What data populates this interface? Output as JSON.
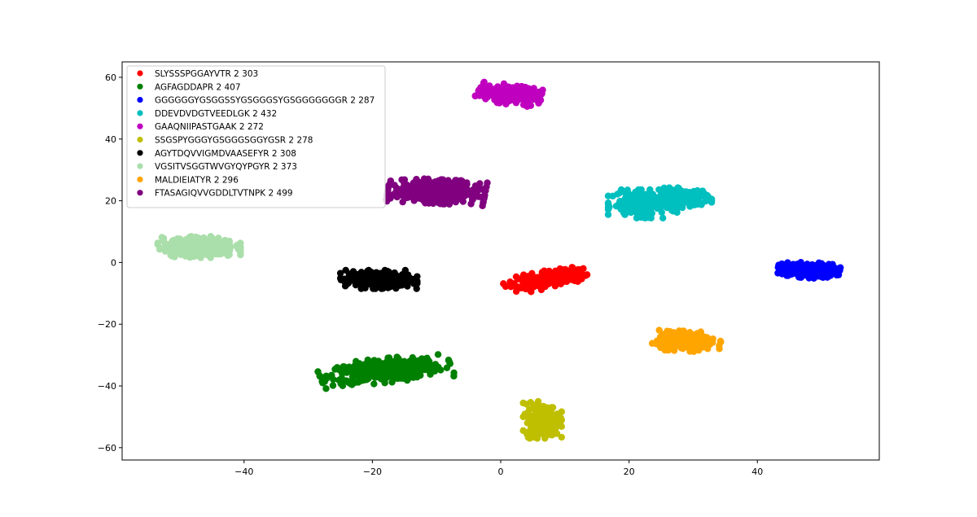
{
  "chart_data": {
    "type": "scatter",
    "title": "",
    "xlabel": "",
    "ylabel": "",
    "xlim": [
      -59,
      59
    ],
    "ylim": [
      -64,
      65
    ],
    "xticks": [
      -40,
      -20,
      0,
      20,
      40
    ],
    "yticks": [
      -60,
      -40,
      -20,
      0,
      20,
      40,
      60
    ],
    "grid": false,
    "legend_position": "top-left",
    "series": [
      {
        "name": "SLYSSSPGGAYVTR 2 303",
        "color": "#ff0000",
        "count": 303,
        "blobs": [
          {
            "cx": 6,
            "cy": -6,
            "sx": 2.4,
            "sy": 1.2,
            "rot": 0.38
          },
          {
            "cx": 10,
            "cy": -4,
            "sx": 1.5,
            "sy": 1.0,
            "rot": 0.1
          }
        ]
      },
      {
        "name": "AGFAGDDAPR 2 407",
        "color": "#008000",
        "count": 407,
        "blobs": [
          {
            "cx": -18,
            "cy": -35,
            "sx": 4.5,
            "sy": 1.7,
            "rot": 0.2
          }
        ]
      },
      {
        "name": "GGGGGGYGSGGSSYGSGGGSYGSGGGGGGGR 2 287",
        "color": "#0000ff",
        "count": 287,
        "blobs": [
          {
            "cx": 48,
            "cy": -2.5,
            "sx": 2.1,
            "sy": 1.1,
            "rot": -0.1
          }
        ]
      },
      {
        "name": "DDEVDVDGTVEEDLGK 2 432",
        "color": "#00bfbf",
        "count": 432,
        "blobs": [
          {
            "cx": 22.5,
            "cy": 19,
            "sx": 2.5,
            "sy": 2.0,
            "rot": 0.0
          },
          {
            "cx": 28.5,
            "cy": 21,
            "sx": 1.9,
            "sy": 1.4,
            "rot": 0.0
          }
        ]
      },
      {
        "name": "GAAQNIIPASTGAAK 2 272",
        "color": "#bf00bf",
        "count": 272,
        "blobs": [
          {
            "cx": 1.5,
            "cy": 54.5,
            "sx": 2.2,
            "sy": 1.4,
            "rot": -0.3
          }
        ]
      },
      {
        "name": "SSGSPYGGGYGSGGGSGGYGSR 2 278",
        "color": "#bfbf00",
        "count": 278,
        "blobs": [
          {
            "cx": 6.5,
            "cy": -51,
            "sx": 1.3,
            "sy": 2.6,
            "rot": 0.0
          }
        ]
      },
      {
        "name": "AGYTDQVVIGMDVAASEFYR 2 308",
        "color": "#000000",
        "count": 308,
        "blobs": [
          {
            "cx": -19,
            "cy": -5.5,
            "sx": 2.6,
            "sy": 1.3,
            "rot": 0.0
          }
        ]
      },
      {
        "name": "VGSITVSGGTWVGYQYPGYR 2 373",
        "color": "#aadeaa",
        "count": 373,
        "blobs": [
          {
            "cx": -47,
            "cy": 5,
            "sx": 2.8,
            "sy": 1.5,
            "rot": 0.0
          }
        ]
      },
      {
        "name": "MALDIEIATYR 2 296",
        "color": "#ffa500",
        "count": 296,
        "blobs": [
          {
            "cx": 29,
            "cy": -25.5,
            "sx": 2.3,
            "sy": 1.4,
            "rot": -0.1
          }
        ]
      },
      {
        "name": "FTASAGIQVVGDDLTVTNPK 2 499",
        "color": "#800080",
        "count": 499,
        "blobs": [
          {
            "cx": -10,
            "cy": 23,
            "sx": 3.3,
            "sy": 1.7,
            "rot": -0.1
          }
        ]
      }
    ]
  }
}
